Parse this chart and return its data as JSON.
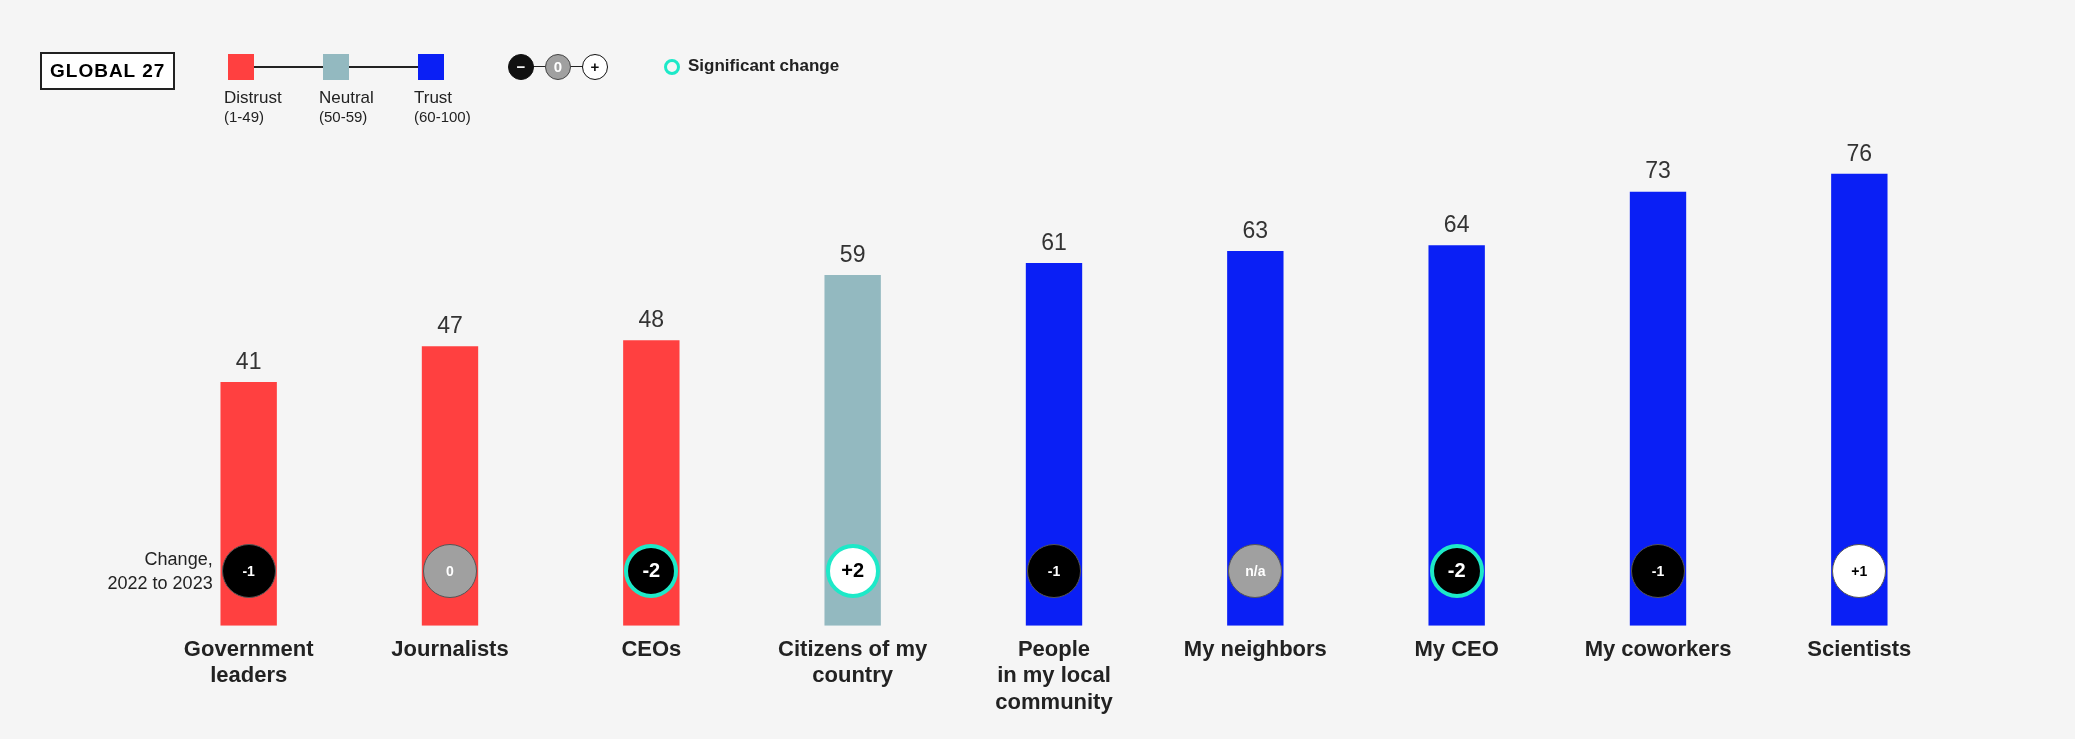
{
  "chart_data": {
    "type": "bar",
    "title": "GLOBAL 27",
    "categories": [
      "Government\nleaders",
      "Journalists",
      "CEOs",
      "Citizens of my\ncountry",
      "People\nin my local\ncommunity",
      "My neighbors",
      "My CEO",
      "My coworkers",
      "Scientists"
    ],
    "series": [
      {
        "name": "Distrust\n(1-49)",
        "color": "#ff4040",
        "values": [
          41,
          47,
          48,
          null,
          null,
          null,
          null,
          null,
          null
        ]
      },
      {
        "name": "Neutral\n(50-59)",
        "color": "#93b9c0",
        "values": [
          null,
          null,
          null,
          59,
          null,
          null,
          null,
          null,
          null
        ]
      },
      {
        "name": "Trust\n(60-100)",
        "color": "#0a1ff5",
        "values": [
          null,
          null,
          null,
          null,
          61,
          63,
          64,
          73,
          76
        ]
      }
    ],
    "stacked": true,
    "data_labels": true,
    "legend": "top left",
    "tick_labels": "x",
    "annotations": [
      "Change,\n2022 to 2023",
      "−",
      "0",
      "+",
      "Significant change",
      "-1",
      "0",
      "-2",
      "+2",
      "-1",
      "n/a",
      "-2",
      "-1",
      "+1"
    ]
  }
}
